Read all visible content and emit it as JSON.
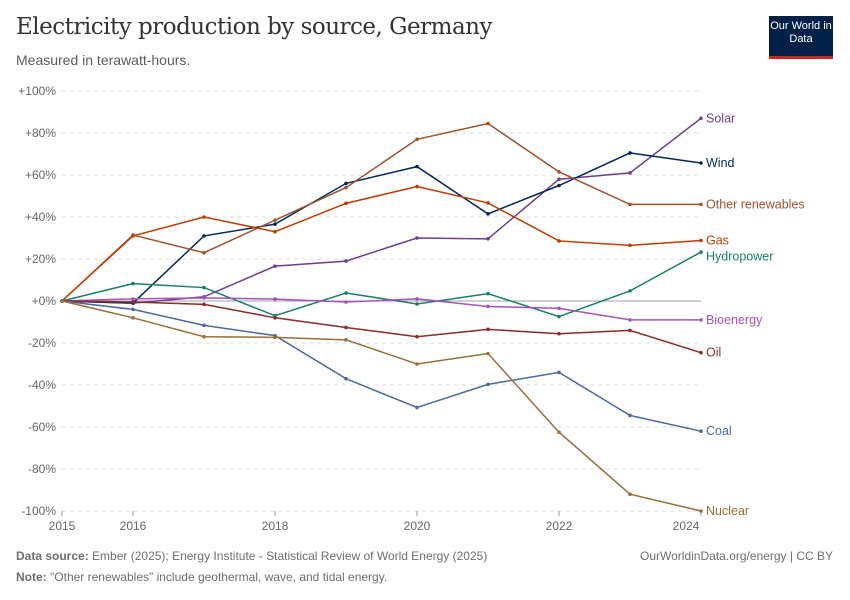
{
  "header": {
    "title": "Electricity production by source, Germany",
    "subtitle": "Measured in terawatt-hours.",
    "logo": "Our World in Data"
  },
  "footer": {
    "source_label": "Data source:",
    "source": "Ember (2025); Energy Institute - Statistical Review of World Energy (2025)",
    "note_label": "Note:",
    "note": "\"Other renewables\" include geothermal, wave, and tidal energy.",
    "link": "OurWorldinData.org/energy | CC BY"
  },
  "chart_data": {
    "type": "line",
    "title": "Electricity production by source, Germany",
    "subtitle": "Measured in terawatt-hours.",
    "x": [
      2015,
      2016,
      2017,
      2018,
      2019,
      2020,
      2021,
      2022,
      2023,
      2024
    ],
    "xticks": [
      2015,
      2016,
      2018,
      2020,
      2022,
      2024
    ],
    "yticks": [
      -100,
      -80,
      -60,
      -40,
      -20,
      0,
      20,
      40,
      60,
      80,
      100
    ],
    "ytick_labels": [
      "-100%",
      "-80%",
      "-60%",
      "-40%",
      "-20%",
      "+0%",
      "+20%",
      "+40%",
      "+60%",
      "+80%",
      "+100%"
    ],
    "ylim": [
      -100,
      100
    ],
    "grid": "horizontal dashed",
    "legend": "right (line end labels)",
    "series": [
      {
        "name": "Solar",
        "color": "#6d3e91",
        "values": [
          0,
          -1,
          2,
          16.6,
          19,
          30,
          29.6,
          58,
          61,
          87
        ]
      },
      {
        "name": "Wind",
        "color": "#00295b",
        "values": [
          0,
          -1,
          31,
          36.6,
          56,
          64,
          41.5,
          55,
          70.5,
          65.7
        ]
      },
      {
        "name": "Other renewables",
        "color": "#a0522d",
        "values": [
          0,
          31.4,
          23,
          38.5,
          54,
          77,
          84.5,
          61.5,
          46,
          46
        ]
      },
      {
        "name": "Gas",
        "color": "#c03c00",
        "values": [
          0,
          31,
          40,
          33,
          46.5,
          54.5,
          46.7,
          28.6,
          26.5,
          28.8
        ]
      },
      {
        "name": "Hydropower",
        "color": "#18806a",
        "values": [
          0,
          8.3,
          6.4,
          -7,
          3.8,
          -1.4,
          3.5,
          -7.4,
          4.8,
          23.3
        ]
      },
      {
        "name": "Bioenergy",
        "color": "#a652ba",
        "values": [
          0,
          1,
          1.5,
          0.9,
          -0.5,
          1,
          -2.6,
          -3.5,
          -9,
          -9
        ]
      },
      {
        "name": "Oil",
        "color": "#8c2a2a",
        "values": [
          0,
          -0.5,
          -1.6,
          -8,
          -12.6,
          -17,
          -13.5,
          -15.6,
          -14,
          -24.6
        ]
      },
      {
        "name": "Coal",
        "color": "#4c6a9c",
        "values": [
          0,
          -4,
          -11.6,
          -16.5,
          -37,
          -50.7,
          -39.7,
          -34,
          -54.5,
          -62
        ]
      },
      {
        "name": "Nuclear",
        "color": "#996d39",
        "values": [
          0,
          -8,
          -17,
          -17.3,
          -18.5,
          -30,
          -25,
          -62.5,
          -92,
          -100
        ]
      }
    ]
  }
}
